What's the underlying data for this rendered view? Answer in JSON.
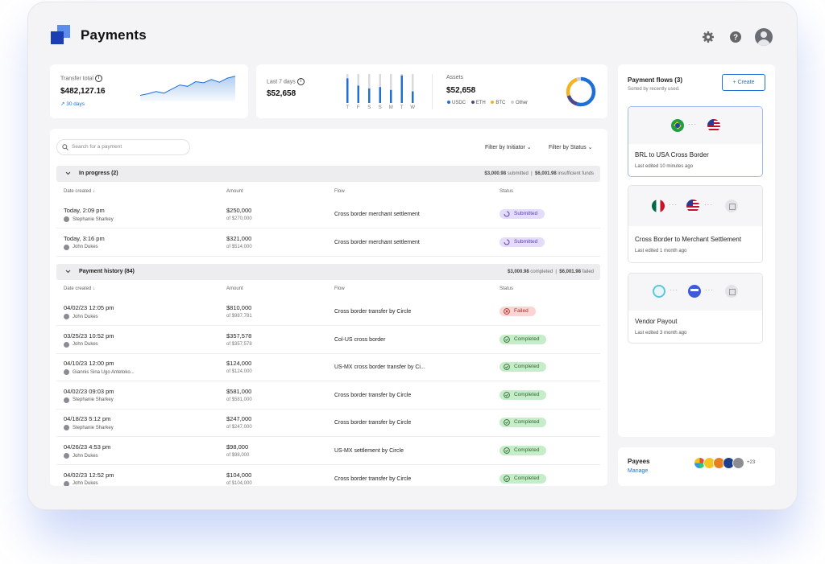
{
  "header": {
    "title": "Payments"
  },
  "transfer": {
    "label": "Transfer total",
    "amount": "$482,127.16",
    "period": "30 days",
    "trend": [
      0.22,
      0.28,
      0.36,
      0.3,
      0.45,
      0.6,
      0.55,
      0.72,
      0.68,
      0.8,
      0.7,
      0.85,
      0.92
    ]
  },
  "last7": {
    "label": "Last 7 days",
    "amount": "$52,658",
    "days": [
      "T",
      "F",
      "S",
      "S",
      "M",
      "T",
      "W"
    ],
    "bars": [
      0.85,
      0.6,
      0.5,
      0.55,
      0.45,
      0.95,
      0.4
    ]
  },
  "assets": {
    "label": "Assets",
    "amount": "$52,658",
    "legend": [
      {
        "name": "USDC",
        "color": "#1f6fd6",
        "share": 0.55
      },
      {
        "name": "ETH",
        "color": "#4a4a8c",
        "share": 0.15
      },
      {
        "name": "BTC",
        "color": "#f5b324",
        "share": 0.25
      },
      {
        "name": "Other",
        "color": "#cfcfd4",
        "share": 0.05
      }
    ]
  },
  "table": {
    "search_placeholder": "Search for a payment",
    "filter_initiator": "Filter by Initiator",
    "filter_status": "Filter by Status",
    "columns": {
      "date": "Date created",
      "amount": "Amount",
      "flow": "Flow",
      "status": "Status"
    },
    "in_progress": {
      "title": "In progress (2)",
      "submitted": "$3,000.98",
      "submitted_label": "submitted",
      "insufficient": "$6,001.98",
      "insufficient_label": "insufficient funds"
    },
    "history": {
      "title": "Payment history (84)",
      "completed": "$3,000.98",
      "completed_label": "completed",
      "failed": "$6,001.98",
      "failed_label": "failed"
    },
    "progress_rows": [
      {
        "date": "Today, 2:09 pm",
        "user": "Stephanie Sharkey",
        "amount": "$250,000",
        "of": "of $270,000",
        "flow": "Cross border merchant settlement",
        "status": "Submitted"
      },
      {
        "date": "Today, 3:16 pm",
        "user": "John Dukes",
        "amount": "$321,000",
        "of": "of $514,000",
        "flow": "Cross border merchant settlement",
        "status": "Submitted"
      }
    ],
    "history_rows": [
      {
        "date": "04/02/23 12:05 pm",
        "user": "John Dukes",
        "amount": "$810,000",
        "of": "of $987,781",
        "flow": "Cross border transfer by Circle",
        "status": "Failed"
      },
      {
        "date": "03/25/23 10:52 pm",
        "user": "John Dukes",
        "amount": "$357,578",
        "of": "of $357,578",
        "flow": "Col-US cross border",
        "status": "Completed"
      },
      {
        "date": "04/10/23 12:00 pm",
        "user": "Giannis Sina Ugo Antetoko...",
        "amount": "$124,000",
        "of": "of $124,000",
        "flow": "US-MX cross border transfer by Ci...",
        "status": "Completed"
      },
      {
        "date": "04/02/23 09:03 pm",
        "user": "Stephanie Sharkey",
        "amount": "$581,000",
        "of": "of $581,000",
        "flow": "Cross border transfer by Circle",
        "status": "Completed"
      },
      {
        "date": "04/18/23 5:12 pm",
        "user": "Stephanie Sharkey",
        "amount": "$247,000",
        "of": "of $247,000",
        "flow": "Cross border transfer by Circle",
        "status": "Completed"
      },
      {
        "date": "04/26/23 4:53 pm",
        "user": "John Dukes",
        "amount": "$98,000",
        "of": "of $98,000",
        "flow": "US-MX settlement by Circle",
        "status": "Completed"
      },
      {
        "date": "04/02/23 12:52 pm",
        "user": "John Dukes",
        "amount": "$104,000",
        "of": "of $104,000",
        "flow": "Cross border transfer by Circle",
        "status": "Completed"
      }
    ]
  },
  "flows": {
    "title": "Payment flows (3)",
    "subtitle": "Sorted by recently used.",
    "create": "Create",
    "items": [
      {
        "name": "BRL to USA Cross Border",
        "edited": "Last edited 10 minutes ago"
      },
      {
        "name": "Cross Border to Merchant Settlement",
        "edited": "Last edited 1 month ago"
      },
      {
        "name": "Vendor Payout",
        "edited": "Last edited 3 month ago"
      }
    ]
  },
  "payees": {
    "title": "Payees",
    "manage": "Manage",
    "more": "+23"
  }
}
